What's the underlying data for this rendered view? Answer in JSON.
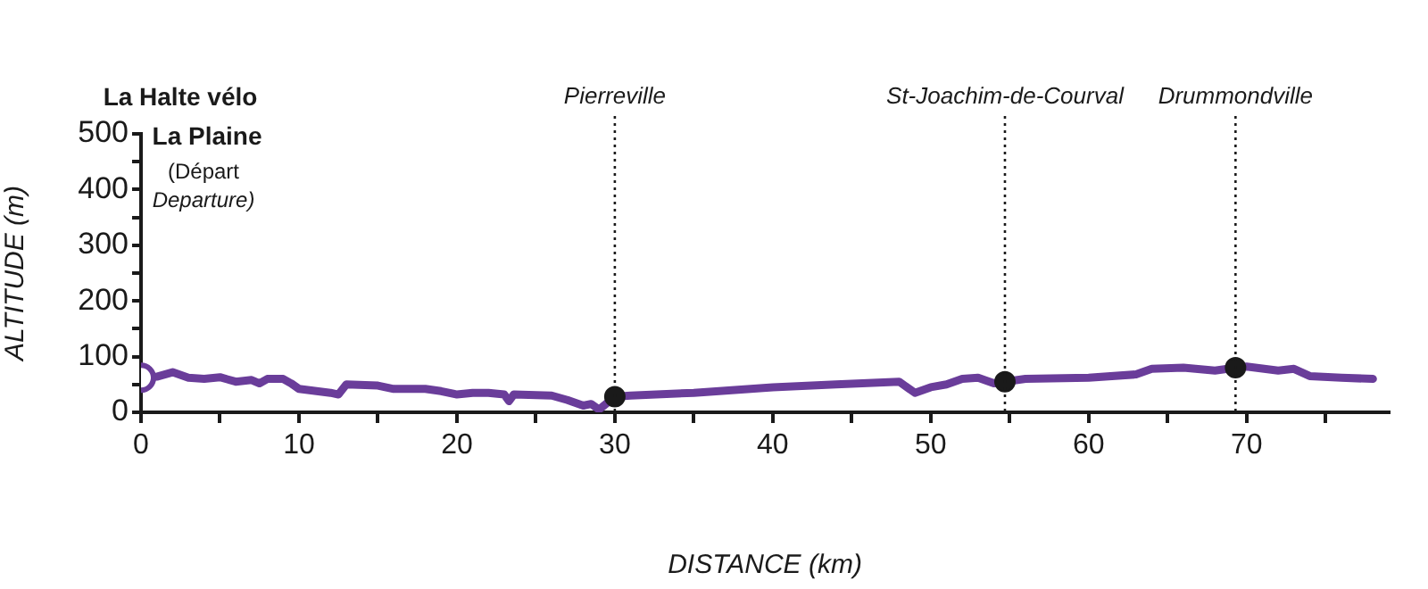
{
  "chart_data": {
    "type": "line",
    "xlabel": "DISTANCE (km)",
    "ylabel": "ALTITUDE (m)",
    "xlim": [
      0,
      79
    ],
    "ylim": [
      0,
      500
    ],
    "xticks": [
      0,
      {
        "value": 5,
        "label": null
      },
      10,
      {
        "value": 15,
        "label": null
      },
      20,
      {
        "value": 25,
        "label": null
      },
      30,
      {
        "value": 35,
        "label": null
      },
      40,
      {
        "value": 45,
        "label": null
      },
      50,
      {
        "value": 55,
        "label": null
      },
      60,
      {
        "value": 65,
        "label": null
      },
      70,
      {
        "value": 75,
        "label": null
      }
    ],
    "yticks": [
      0,
      {
        "value": 50,
        "label": null
      },
      100,
      {
        "value": 150,
        "label": null
      },
      200,
      {
        "value": 250,
        "label": null
      },
      300,
      {
        "value": 350,
        "label": null
      },
      400,
      {
        "value": 450,
        "label": null
      },
      500
    ],
    "grid": false,
    "legend": false,
    "series": [
      {
        "color": "#6a3d9a",
        "marker": "none",
        "x": [
          0,
          1,
          2,
          3,
          4,
          5,
          6,
          7,
          7.5,
          8,
          9,
          9.5,
          10,
          12,
          12.5,
          13,
          15,
          16,
          18,
          19,
          20,
          21,
          22,
          23,
          23.3,
          23.6,
          26,
          27,
          28,
          28.5,
          29,
          30,
          31,
          35,
          40,
          44,
          48,
          49,
          50,
          51,
          52,
          53,
          54,
          54.7,
          56,
          60,
          63,
          64,
          66,
          68,
          69.3,
          70,
          72,
          73,
          74,
          76,
          78
        ],
        "values": [
          62,
          64,
          72,
          62,
          60,
          63,
          55,
          58,
          52,
          60,
          60,
          52,
          42,
          35,
          32,
          50,
          48,
          42,
          42,
          38,
          32,
          35,
          35,
          32,
          20,
          32,
          30,
          22,
          12,
          15,
          5,
          28,
          30,
          35,
          45,
          50,
          55,
          35,
          45,
          50,
          60,
          62,
          52,
          55,
          60,
          62,
          68,
          78,
          80,
          75,
          80,
          82,
          75,
          78,
          65,
          62,
          60
        ]
      },
      {
        "type": "scatter",
        "color": "#6a3d9a",
        "marker": "circle",
        "x": [
          0
        ],
        "values": [
          62
        ]
      },
      {
        "type": "scatter",
        "color": "#1a1a1a",
        "marker": "circle",
        "x": [
          30,
          54.7,
          69.3
        ],
        "values": [
          28,
          55,
          80
        ]
      }
    ],
    "ref_lines": [
      {
        "axis": "x",
        "value": 30,
        "label": "Pierreville",
        "line_style": "dotted",
        "color": "#1a1a1a"
      },
      {
        "axis": "x",
        "value": 54.7,
        "label": "St-Joachim-de-Courval",
        "line_style": "dotted",
        "color": "#1a1a1a"
      },
      {
        "axis": "x",
        "value": 69.3,
        "label": "Drummondville",
        "line_style": "dotted",
        "color": "#1a1a1a"
      }
    ],
    "annotations": [
      "La Halte vélo\nLa Plaine\n(Départ\nDeparture)"
    ]
  }
}
